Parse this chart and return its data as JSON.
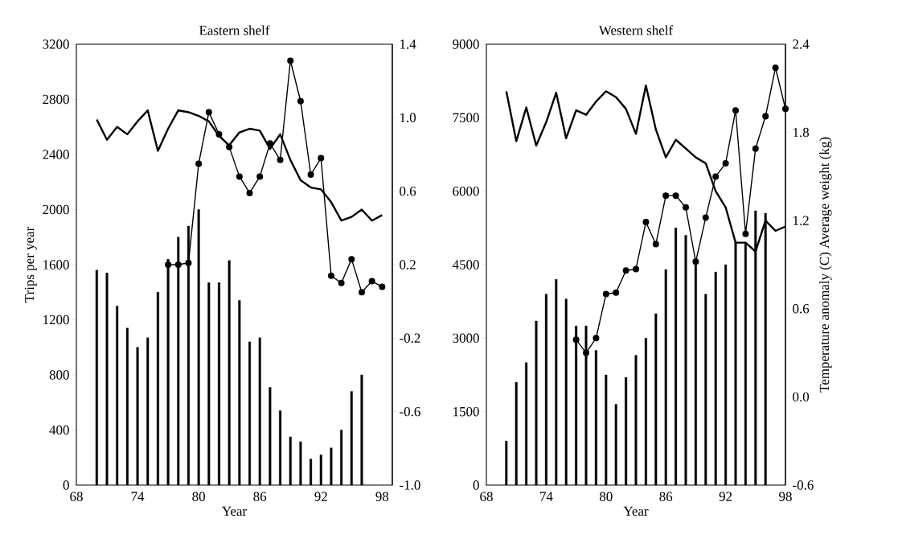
{
  "chart_data": [
    {
      "type": "bar",
      "title": "Eastern shelf",
      "xlabel": "Year",
      "ylabel": "Trips per year",
      "xlim": [
        68,
        99
      ],
      "xticks": [
        68,
        74,
        80,
        86,
        92,
        98
      ],
      "ylim": [
        0,
        3200
      ],
      "yticks": [
        0,
        400,
        800,
        1200,
        1600,
        2000,
        2400,
        2800,
        3200
      ],
      "y2lim": [
        -1.0,
        1.4
      ],
      "y2ticks": [
        {
          "value": -1.0,
          "label": "-1.0"
        },
        -0.6,
        -0.2,
        0.2,
        0.6,
        {
          "value": 1.0,
          "label": "1.0"
        },
        1.4
      ],
      "series": [
        {
          "color": "#000000",
          "x": [
            70,
            71,
            72,
            73,
            74,
            75,
            76,
            77,
            78,
            79,
            80,
            81,
            82,
            83,
            84,
            85,
            86,
            87,
            88,
            89,
            90,
            91,
            92,
            93,
            94,
            95,
            96
          ],
          "values": [
            1560,
            1540,
            1300,
            1140,
            1000,
            1070,
            1400,
            1640,
            1800,
            1880,
            2000,
            1470,
            1470,
            1630,
            1340,
            1040,
            1070,
            710,
            540,
            350,
            315,
            190,
            220,
            270,
            400,
            680,
            800
          ]
        },
        {
          "type": "line",
          "axis": "y2",
          "color": "#000000",
          "marker": "none",
          "x": [
            70,
            71,
            72,
            73,
            74,
            75,
            76,
            77,
            78,
            79,
            80,
            81,
            82,
            83,
            84,
            85,
            86,
            87,
            88,
            89,
            90,
            91,
            92,
            93,
            94,
            95,
            96,
            97,
            98
          ],
          "values": [
            0.99,
            0.88,
            0.95,
            0.91,
            0.98,
            1.04,
            0.82,
            0.94,
            1.04,
            1.03,
            1.01,
            0.98,
            0.9,
            0.85,
            0.92,
            0.94,
            0.93,
            0.83,
            0.91,
            0.77,
            0.66,
            0.62,
            0.61,
            0.54,
            0.44,
            0.46,
            0.5,
            0.44,
            0.47
          ]
        },
        {
          "type": "line",
          "axis": "y2",
          "color": "#000000",
          "marker": "circle",
          "x": [
            77,
            78,
            79,
            80,
            81,
            82,
            83,
            84,
            85,
            86,
            87,
            88,
            89,
            90,
            91,
            92,
            93,
            94,
            95,
            96,
            97,
            98
          ],
          "values": [
            0.2,
            0.2,
            0.21,
            0.75,
            1.03,
            0.91,
            0.84,
            0.68,
            0.59,
            0.68,
            0.86,
            0.77,
            1.31,
            1.09,
            0.69,
            0.78,
            0.14,
            0.1,
            0.23,
            0.05,
            0.11,
            0.08
          ]
        }
      ]
    },
    {
      "type": "bar",
      "title": "Western shelf",
      "xlabel": "Year",
      "y2label": "Temperature anomaly (C) Average weight (kg)",
      "xlim": [
        68,
        98
      ],
      "xticks": [
        68,
        74,
        80,
        86,
        92,
        98
      ],
      "ylim": [
        0,
        9000
      ],
      "yticks": [
        0,
        1500,
        3000,
        4500,
        6000,
        7500,
        9000
      ],
      "y2lim": [
        -0.6,
        2.4
      ],
      "y2ticks": [
        -0.6,
        {
          "value": 0.0,
          "label": "0.0"
        },
        0.6,
        1.2,
        1.8,
        2.4
      ],
      "series": [
        {
          "color": "#000000",
          "x": [
            70,
            71,
            72,
            73,
            74,
            75,
            76,
            77,
            78,
            79,
            80,
            81,
            82,
            83,
            84,
            85,
            86,
            87,
            88,
            89,
            90,
            91,
            92,
            93,
            94,
            95,
            96
          ],
          "values": [
            900,
            2100,
            2500,
            3350,
            3900,
            4200,
            3800,
            3250,
            3250,
            2750,
            2250,
            1650,
            2200,
            2650,
            3000,
            3500,
            4400,
            5250,
            5100,
            4550,
            3900,
            4350,
            4500,
            4950,
            4950,
            5600,
            5550
          ]
        },
        {
          "type": "line",
          "axis": "y2",
          "color": "#000000",
          "marker": "none",
          "x": [
            70,
            71,
            72,
            73,
            74,
            75,
            76,
            77,
            78,
            79,
            80,
            81,
            82,
            83,
            84,
            85,
            86,
            87,
            88,
            89,
            90,
            91,
            92,
            93,
            94,
            95,
            96,
            97,
            98
          ],
          "values": [
            2.08,
            1.74,
            1.97,
            1.71,
            1.87,
            2.07,
            1.76,
            1.95,
            1.92,
            2.01,
            2.08,
            2.04,
            1.96,
            1.79,
            2.12,
            1.82,
            1.63,
            1.75,
            1.69,
            1.63,
            1.59,
            1.4,
            1.29,
            1.05,
            1.05,
            0.99,
            1.2,
            1.13,
            1.16
          ]
        },
        {
          "type": "line",
          "axis": "y2",
          "color": "#000000",
          "marker": "circle",
          "x": [
            77,
            78,
            79,
            80,
            81,
            82,
            83,
            84,
            85,
            86,
            87,
            88,
            89,
            90,
            91,
            92,
            93,
            94,
            95,
            96,
            97,
            98
          ],
          "values": [
            0.39,
            0.3,
            0.4,
            0.7,
            0.71,
            0.86,
            0.87,
            1.19,
            1.04,
            1.37,
            1.37,
            1.29,
            0.92,
            1.22,
            1.5,
            1.59,
            1.95,
            1.11,
            1.69,
            1.91,
            2.24,
            1.96
          ]
        }
      ]
    }
  ]
}
